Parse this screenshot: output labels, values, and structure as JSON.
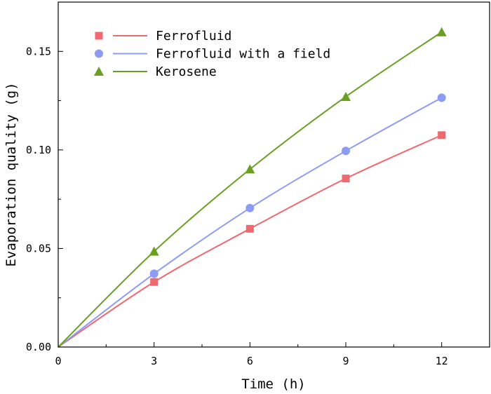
{
  "chart_data": {
    "type": "line",
    "xlabel": "Time (h)",
    "ylabel": "Evaporation quality (g)",
    "x": [
      0,
      3,
      6,
      9,
      12
    ],
    "xlim": [
      0,
      13.5
    ],
    "ylim": [
      0,
      0.175
    ],
    "xticks": [
      "0",
      "3",
      "6",
      "9",
      "12"
    ],
    "yticks": [
      "0.00",
      "0.05",
      "0.10",
      "0.15"
    ],
    "legend_position": "top-left",
    "grid": false,
    "series": [
      {
        "name": "Ferrofluid",
        "marker": "square",
        "color": "#f06870",
        "values": [
          0,
          0.033,
          0.06,
          0.0855,
          0.1075
        ]
      },
      {
        "name": "Ferrofluid with a field",
        "marker": "circle",
        "color": "#8c9cf4",
        "values": [
          0,
          0.0372,
          0.0705,
          0.0995,
          0.1265
        ]
      },
      {
        "name": "Kerosene",
        "marker": "triangle",
        "color": "#6aa022",
        "values": [
          0,
          0.0485,
          0.0902,
          0.127,
          0.1598
        ]
      }
    ]
  }
}
